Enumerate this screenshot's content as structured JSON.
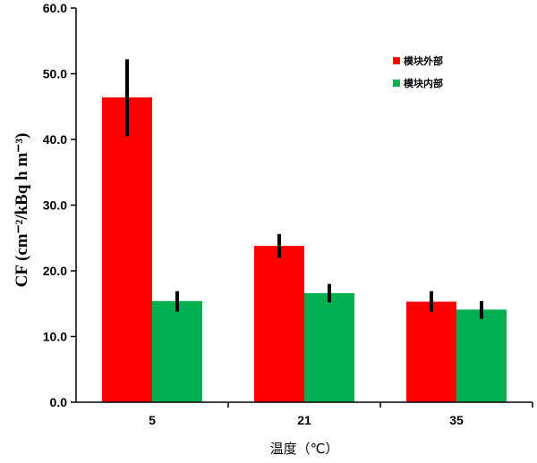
{
  "chart_data": {
    "type": "bar",
    "title": "",
    "xlabel": "温度（℃）",
    "ylabel": "CF (cm⁻²/kBq h m⁻³)",
    "ylim": [
      0,
      60
    ],
    "yticks": [
      "0.0",
      "10.0",
      "20.0",
      "30.0",
      "40.0",
      "50.0",
      "60.0"
    ],
    "categories": [
      "5",
      "21",
      "35"
    ],
    "grid": false,
    "legend_position": "top-right",
    "series": [
      {
        "name": "模块外部",
        "color": "#ff0000",
        "values": [
          46.4,
          23.8,
          15.3
        ],
        "error_low": [
          40.5,
          22.0,
          13.8
        ],
        "error_high": [
          52.2,
          25.6,
          16.9
        ]
      },
      {
        "name": "模块内部",
        "color": "#00b050",
        "values": [
          15.4,
          16.6,
          14.1
        ],
        "error_low": [
          13.8,
          15.2,
          12.7
        ],
        "error_high": [
          16.9,
          18.0,
          15.4
        ]
      }
    ]
  }
}
